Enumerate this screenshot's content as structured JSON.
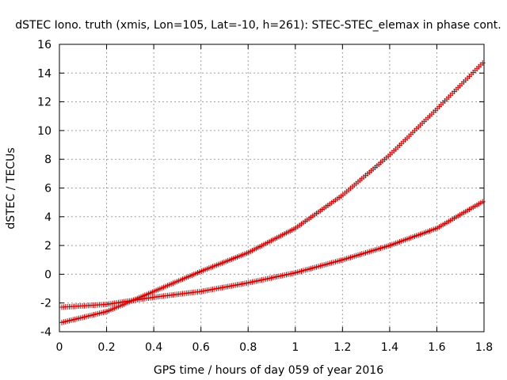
{
  "chart_data": {
    "type": "scatter",
    "title": "dSTEC Iono. truth (xmis, Lon=105, Lat=-10, h=261): STEC-STEC_elemax in phase cont.",
    "xlabel": "GPS time / hours of day 059 of year 2016",
    "ylabel": "dSTEC  / TECUs",
    "xlim": [
      0,
      1.8
    ],
    "ylim": [
      -4,
      16
    ],
    "xticks": [
      "0",
      "0.2",
      "0.4",
      "0.6",
      "0.8",
      "1",
      "1.2",
      "1.4",
      "1.6",
      "1.8"
    ],
    "yticks": [
      "-4",
      "-2",
      "0",
      "2",
      "4",
      "6",
      "8",
      "10",
      "12",
      "14",
      "16"
    ],
    "grid": true,
    "marker": "+",
    "marker_color": "#cc0000",
    "series": [
      {
        "x": [
          0.0,
          0.2,
          0.4,
          0.6,
          0.8,
          1.0,
          1.2,
          1.4,
          1.6,
          1.8
        ],
        "values": [
          -3.4,
          -2.6,
          -1.2,
          0.2,
          1.5,
          3.2,
          5.5,
          8.3,
          11.5,
          14.8
        ]
      },
      {
        "x": [
          0.0,
          0.2,
          0.4,
          0.6,
          0.8,
          1.0,
          1.2,
          1.4,
          1.6,
          1.8
        ],
        "values": [
          -2.3,
          -2.1,
          -1.6,
          -1.2,
          -0.6,
          0.1,
          1.0,
          2.0,
          3.2,
          5.1
        ]
      }
    ]
  }
}
